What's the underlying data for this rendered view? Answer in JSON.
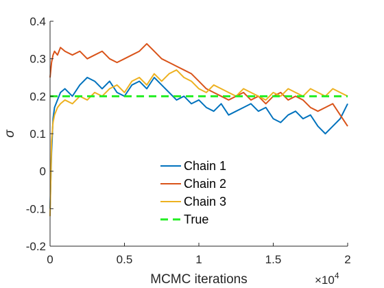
{
  "chart_data": {
    "type": "line",
    "xlabel": "MCMC iterations",
    "ylabel": "σ",
    "x_exponent_label": "×10",
    "x_exponent": "4",
    "xlim": [
      0,
      20000
    ],
    "ylim": [
      -0.2,
      0.4
    ],
    "xticks": [
      0,
      5000,
      10000,
      15000,
      20000
    ],
    "xtick_labels": [
      "0",
      "0.5",
      "1",
      "1.5",
      "2"
    ],
    "yticks": [
      -0.2,
      -0.1,
      0,
      0.1,
      0.2,
      0.3,
      0.4
    ],
    "ytick_labels": [
      "-0.2",
      "-0.1",
      "0",
      "0.1",
      "0.2",
      "0.3",
      "0.4"
    ],
    "legend_location": "center",
    "series": [
      {
        "name": "Chain 1",
        "color": "#0072BD",
        "style": "solid",
        "x": [
          0,
          100,
          200,
          300,
          500,
          700,
          1000,
          1500,
          2000,
          2500,
          3000,
          3500,
          4000,
          4500,
          5000,
          5500,
          6000,
          6500,
          7000,
          7500,
          8000,
          8500,
          9000,
          9500,
          10000,
          10500,
          11000,
          11500,
          12000,
          12500,
          13000,
          13500,
          14000,
          14500,
          15000,
          15500,
          16000,
          16500,
          17000,
          17500,
          18000,
          18500,
          19000,
          19500,
          20000
        ],
        "y": [
          -0.1,
          0.05,
          0.14,
          0.17,
          0.19,
          0.21,
          0.22,
          0.2,
          0.23,
          0.25,
          0.24,
          0.22,
          0.24,
          0.21,
          0.2,
          0.23,
          0.24,
          0.22,
          0.25,
          0.23,
          0.21,
          0.19,
          0.2,
          0.18,
          0.19,
          0.17,
          0.16,
          0.18,
          0.15,
          0.16,
          0.17,
          0.18,
          0.16,
          0.17,
          0.14,
          0.13,
          0.15,
          0.16,
          0.14,
          0.15,
          0.12,
          0.1,
          0.12,
          0.14,
          0.18
        ]
      },
      {
        "name": "Chain 2",
        "color": "#D95319",
        "style": "solid",
        "x": [
          0,
          100,
          200,
          300,
          500,
          700,
          1000,
          1500,
          2000,
          2500,
          3000,
          3500,
          4000,
          4500,
          5000,
          5500,
          6000,
          6500,
          7000,
          7500,
          8000,
          8500,
          9000,
          9500,
          10000,
          10500,
          11000,
          11500,
          12000,
          12500,
          13000,
          13500,
          14000,
          14500,
          15000,
          15500,
          16000,
          16500,
          17000,
          17500,
          18000,
          18500,
          19000,
          19500,
          20000
        ],
        "y": [
          0.25,
          0.29,
          0.31,
          0.32,
          0.31,
          0.33,
          0.32,
          0.31,
          0.32,
          0.3,
          0.31,
          0.32,
          0.3,
          0.29,
          0.3,
          0.31,
          0.32,
          0.34,
          0.32,
          0.3,
          0.29,
          0.28,
          0.27,
          0.26,
          0.24,
          0.22,
          0.21,
          0.2,
          0.19,
          0.2,
          0.21,
          0.19,
          0.2,
          0.18,
          0.2,
          0.21,
          0.19,
          0.2,
          0.19,
          0.17,
          0.16,
          0.17,
          0.18,
          0.15,
          0.12
        ]
      },
      {
        "name": "Chain 3",
        "color": "#EDB120",
        "style": "solid",
        "x": [
          0,
          100,
          200,
          300,
          500,
          700,
          1000,
          1500,
          2000,
          2500,
          3000,
          3500,
          4000,
          4500,
          5000,
          5500,
          6000,
          6500,
          7000,
          7500,
          8000,
          8500,
          9000,
          9500,
          10000,
          10500,
          11000,
          11500,
          12000,
          12500,
          13000,
          13500,
          14000,
          14500,
          15000,
          15500,
          16000,
          16500,
          17000,
          17500,
          18000,
          18500,
          19000,
          19500,
          20000
        ],
        "y": [
          -0.12,
          0.08,
          0.13,
          0.15,
          0.17,
          0.18,
          0.19,
          0.18,
          0.2,
          0.19,
          0.21,
          0.2,
          0.22,
          0.23,
          0.21,
          0.24,
          0.25,
          0.23,
          0.26,
          0.24,
          0.26,
          0.27,
          0.25,
          0.24,
          0.22,
          0.21,
          0.23,
          0.22,
          0.21,
          0.2,
          0.22,
          0.21,
          0.2,
          0.19,
          0.21,
          0.2,
          0.22,
          0.21,
          0.2,
          0.22,
          0.21,
          0.2,
          0.22,
          0.21,
          0.2
        ]
      },
      {
        "name": "True",
        "color": "#22EE22",
        "style": "dashed",
        "x": [
          0,
          20000
        ],
        "y": [
          0.2,
          0.2
        ]
      }
    ]
  }
}
